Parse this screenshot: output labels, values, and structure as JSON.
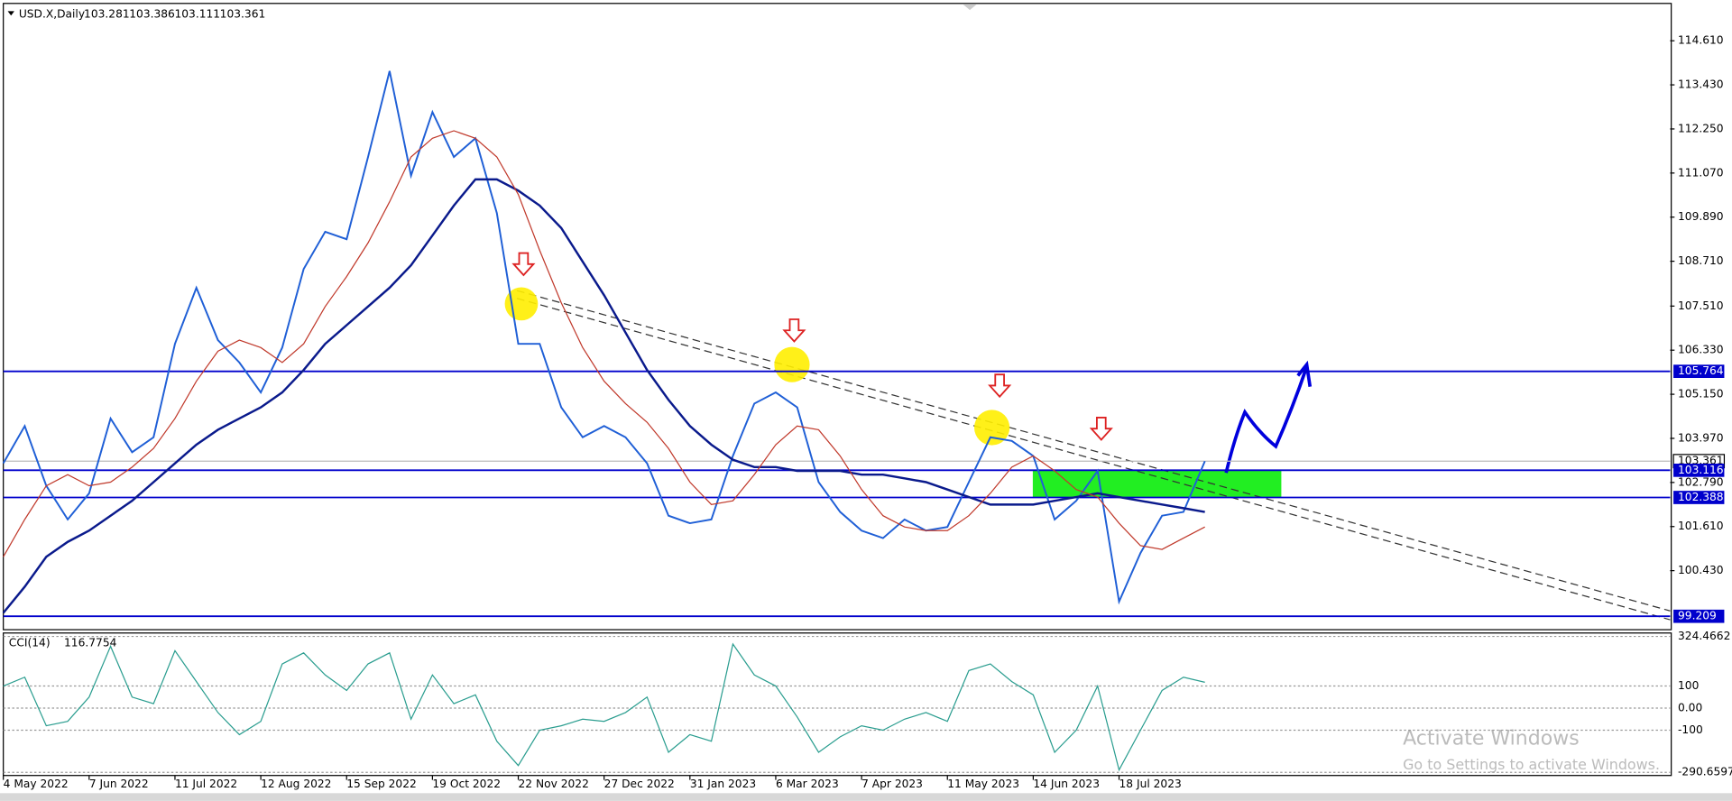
{
  "chart_data": {
    "type": "line",
    "title": "USD.X,Daily",
    "ohlc": [
      103.281,
      103.386,
      103.111,
      103.361
    ],
    "categories": [
      "4 May 2022",
      null,
      null,
      null,
      "7 Jun 2022",
      null,
      null,
      null,
      "11 Jul 2022",
      null,
      null,
      null,
      "12 Aug 2022",
      null,
      null,
      null,
      "15 Sep 2022",
      null,
      null,
      null,
      "19 Oct 2022",
      null,
      null,
      null,
      "22 Nov 2022",
      null,
      null,
      null,
      "27 Dec 2022",
      null,
      null,
      null,
      "31 Jan 2023",
      null,
      null,
      null,
      "6 Mar 2023",
      null,
      null,
      null,
      "7 Apr 2023",
      null,
      null,
      null,
      "11 May 2023",
      null,
      null,
      null,
      "14 Jun 2023",
      null,
      null,
      null,
      "18 Jul 2023",
      null,
      null,
      null,
      null
    ],
    "series": [
      {
        "name": "USD.X",
        "color": "#1f5fd6",
        "values": [
          103.3,
          104.3,
          102.7,
          101.8,
          102.5,
          104.5,
          103.6,
          104.0,
          106.5,
          108.0,
          106.6,
          106.0,
          105.2,
          106.4,
          108.5,
          109.5,
          109.3,
          111.5,
          113.8,
          111.0,
          112.7,
          111.5,
          112.0,
          110.0,
          106.5,
          106.5,
          104.8,
          104.0,
          104.3,
          104.0,
          103.3,
          101.9,
          101.7,
          101.8,
          103.5,
          104.9,
          105.2,
          104.8,
          102.8,
          102.0,
          101.5,
          101.3,
          101.8,
          101.5,
          101.6,
          102.8,
          104.0,
          103.9,
          103.5,
          101.8,
          102.3,
          103.1,
          99.6,
          100.9,
          101.9,
          102.0,
          103.361
        ]
      },
      {
        "color": "#0a1a8c",
        "values": [
          99.3,
          100.0,
          100.8,
          101.2,
          101.5,
          101.9,
          102.3,
          102.8,
          103.3,
          103.8,
          104.2,
          104.5,
          104.8,
          105.2,
          105.8,
          106.5,
          107.0,
          107.5,
          108.0,
          108.6,
          109.4,
          110.2,
          110.9,
          110.9,
          110.6,
          110.2,
          109.6,
          108.7,
          107.8,
          106.8,
          105.8,
          105.0,
          104.3,
          103.8,
          103.4,
          103.2,
          103.2,
          103.1,
          103.1,
          103.1,
          103.0,
          103.0,
          102.9,
          102.8,
          102.6,
          102.4,
          102.2,
          102.2,
          102.2,
          102.3,
          102.4,
          102.5,
          102.4,
          102.3,
          102.2,
          102.1,
          102.0
        ]
      },
      {
        "color": "#c0392b",
        "values": [
          100.8,
          101.8,
          102.7,
          103.0,
          102.7,
          102.8,
          103.2,
          103.7,
          104.5,
          105.5,
          106.3,
          106.6,
          106.4,
          106.0,
          106.5,
          107.5,
          108.3,
          109.2,
          110.3,
          111.5,
          112.0,
          112.2,
          112.0,
          111.5,
          110.5,
          109.0,
          107.6,
          106.4,
          105.5,
          104.9,
          104.4,
          103.7,
          102.8,
          102.2,
          102.3,
          103.0,
          103.8,
          104.3,
          104.2,
          103.5,
          102.6,
          101.9,
          101.6,
          101.5,
          101.5,
          101.9,
          102.5,
          103.2,
          103.5,
          103.1,
          102.6,
          102.4,
          101.7,
          101.1,
          101.0,
          101.3,
          101.6
        ]
      }
    ],
    "ylim": [
      98.85,
      115.55
    ],
    "yticks": [
      {
        "value": 114.61,
        "label": "114.610"
      },
      {
        "value": 113.43,
        "label": "113.430"
      },
      {
        "value": 112.25,
        "label": "112.250"
      },
      {
        "value": 111.07,
        "label": "111.070"
      },
      {
        "value": 109.89,
        "label": "109.890"
      },
      {
        "value": 108.71,
        "label": "108.710"
      },
      {
        "value": 107.51,
        "label": "107.510"
      },
      {
        "value": 106.33,
        "label": "106.330"
      },
      {
        "value": 105.15,
        "label": "105.150"
      },
      {
        "value": 103.97,
        "label": "103.970"
      },
      {
        "value": 102.79,
        "label": "102.790"
      },
      {
        "value": 101.61,
        "label": "101.610"
      },
      {
        "value": 100.43,
        "label": "100.430"
      }
    ],
    "levels": [
      105.764,
      103.116,
      102.388,
      99.209
    ],
    "level_color": "#0000cc",
    "current_price": 103.361,
    "indicator": {
      "name": "CCI(14)",
      "value": 116.7754,
      "color": "#2a9d8f",
      "values": [
        100,
        140,
        -80,
        -60,
        50,
        280,
        50,
        20,
        260,
        120,
        -20,
        -120,
        -60,
        200,
        250,
        150,
        80,
        200,
        250,
        -50,
        150,
        20,
        60,
        -150,
        -260,
        -100,
        -80,
        -50,
        -60,
        -20,
        50,
        -200,
        -120,
        -150,
        290,
        150,
        100,
        -40,
        -200,
        -130,
        -80,
        -100,
        -50,
        -20,
        -60,
        170,
        200,
        120,
        60,
        -200,
        -100,
        100,
        -280,
        -100,
        80,
        140,
        116.7754
      ],
      "ylim": [
        -305,
        330
      ],
      "yticks": [
        324.4662,
        100,
        {
          "value": 0,
          "label": "0.00"
        },
        -100,
        -290.6597
      ]
    },
    "watermark": {
      "title": "Activate Windows",
      "subtitle": "Go to Settings to activate Windows."
    }
  }
}
